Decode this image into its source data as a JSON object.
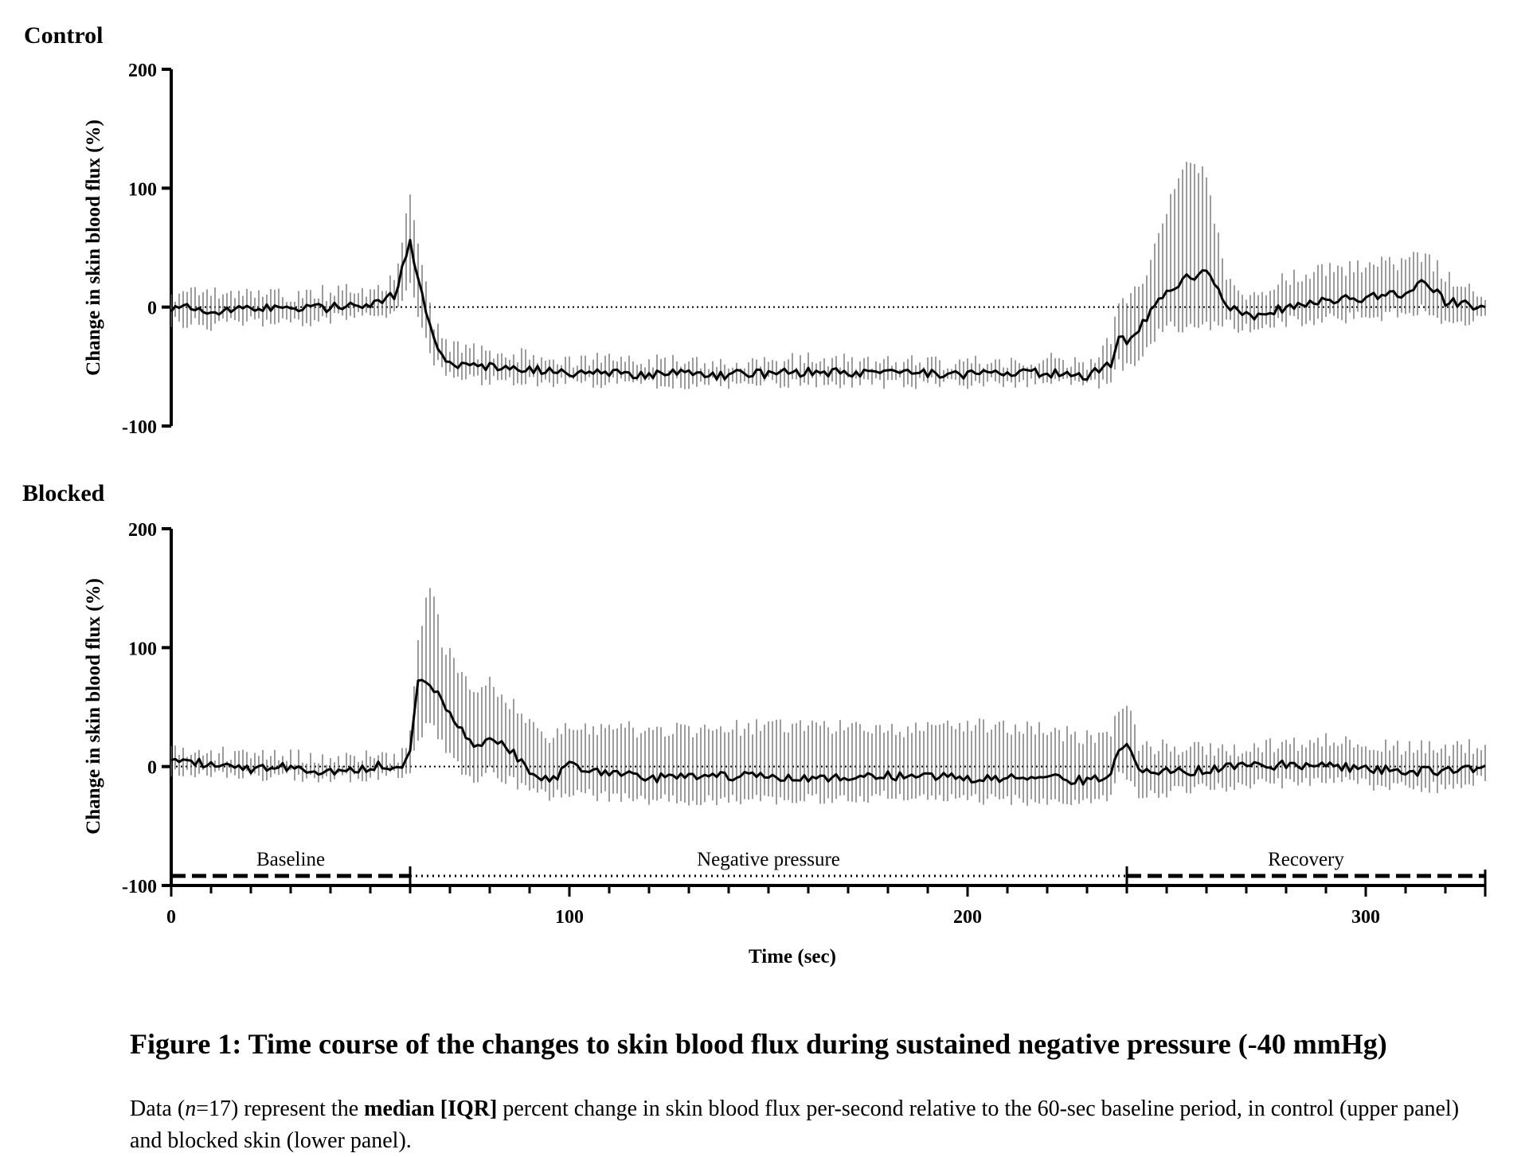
{
  "caption": {
    "title": "Figure 1: Time course of the changes to skin blood flux during sustained negative pressure (-40 mmHg)",
    "body_parts": {
      "a": "Data (",
      "n_symbol": "n",
      "b": "=17) represent the ",
      "bold": "median [IQR]",
      "c": " percent change in skin blood flux per-second relative to the 60-sec baseline period, in control (upper panel) and blocked skin (lower panel)."
    }
  },
  "chart_data": [
    {
      "type": "line",
      "panel_label": "Control",
      "ylabel": "Change in skin blood flux (%)",
      "ylim": [
        -100,
        200
      ],
      "yticks": [
        -100,
        0,
        100,
        200
      ],
      "xlim": [
        0,
        330
      ],
      "reference_line_y": 0,
      "series_description": "median with IQR error bars per second",
      "key_points": {
        "x": [
          0,
          10,
          20,
          30,
          40,
          50,
          56,
          60,
          63,
          66,
          70,
          80,
          100,
          120,
          140,
          160,
          180,
          200,
          220,
          230,
          236,
          238,
          240,
          245,
          250,
          255,
          260,
          265,
          270,
          280,
          290,
          300,
          310,
          315,
          320,
          330
        ],
        "median": [
          0,
          -3,
          0,
          -2,
          0,
          3,
          10,
          55,
          10,
          -30,
          -48,
          -50,
          -55,
          -56,
          -57,
          -55,
          -56,
          -57,
          -55,
          -58,
          -48,
          -22,
          -30,
          -10,
          15,
          25,
          30,
          0,
          -8,
          0,
          5,
          8,
          12,
          22,
          5,
          0
        ],
        "q1": [
          -12,
          -15,
          -12,
          -14,
          -10,
          -8,
          -2,
          18,
          -15,
          -45,
          -58,
          -62,
          -63,
          -64,
          -64,
          -63,
          -64,
          -64,
          -63,
          -66,
          -62,
          -45,
          -52,
          -35,
          -15,
          -20,
          -15,
          -15,
          -18,
          -12,
          -10,
          -8,
          -5,
          0,
          -12,
          -10
        ],
        "q3": [
          10,
          10,
          10,
          10,
          12,
          14,
          22,
          100,
          35,
          -15,
          -35,
          -38,
          -45,
          -46,
          -48,
          -45,
          -46,
          -47,
          -45,
          -48,
          -30,
          10,
          5,
          30,
          80,
          125,
          110,
          20,
          5,
          25,
          30,
          35,
          38,
          45,
          25,
          12
        ]
      }
    },
    {
      "type": "line",
      "panel_label": "Blocked",
      "ylabel": "Change in skin blood flux (%)",
      "ylim": [
        -100,
        200
      ],
      "yticks": [
        -100,
        0,
        100,
        200
      ],
      "xlim": [
        0,
        330
      ],
      "xlabel": "Time (sec)",
      "xticks": [
        0,
        100,
        200,
        300
      ],
      "reference_line_y": 0,
      "series_description": "median with IQR error bars per second",
      "key_points": {
        "x": [
          0,
          20,
          30,
          40,
          50,
          58,
          60,
          62,
          65,
          68,
          72,
          76,
          80,
          85,
          90,
          95,
          100,
          120,
          140,
          160,
          180,
          200,
          220,
          230,
          236,
          238,
          240,
          243,
          250,
          270,
          290,
          300,
          320,
          330
        ],
        "median": [
          5,
          -2,
          0,
          -5,
          0,
          2,
          15,
          70,
          72,
          55,
          35,
          15,
          25,
          15,
          -5,
          -12,
          0,
          -10,
          -8,
          -10,
          -8,
          -10,
          -10,
          -12,
          -10,
          15,
          20,
          -5,
          -5,
          0,
          2,
          -2,
          -5,
          0
        ],
        "q1": [
          -5,
          -8,
          -8,
          -10,
          -8,
          -5,
          -2,
          25,
          35,
          20,
          0,
          -10,
          -5,
          -12,
          -20,
          -25,
          -22,
          -28,
          -28,
          -28,
          -25,
          -28,
          -28,
          -28,
          -25,
          -5,
          -10,
          -25,
          -22,
          -15,
          -12,
          -15,
          -18,
          -10
        ],
        "q3": [
          15,
          8,
          8,
          5,
          8,
          10,
          35,
          110,
          155,
          105,
          85,
          65,
          70,
          55,
          35,
          25,
          35,
          30,
          32,
          35,
          30,
          35,
          30,
          25,
          30,
          45,
          55,
          20,
          15,
          15,
          22,
          18,
          15,
          18
        ]
      }
    }
  ],
  "phases": [
    {
      "label": "Baseline",
      "start": 0,
      "end": 60,
      "style": "dashed"
    },
    {
      "label": "Negative pressure",
      "start": 60,
      "end": 240,
      "style": "dotted"
    },
    {
      "label": "Recovery",
      "start": 240,
      "end": 330,
      "style": "dashed"
    }
  ]
}
